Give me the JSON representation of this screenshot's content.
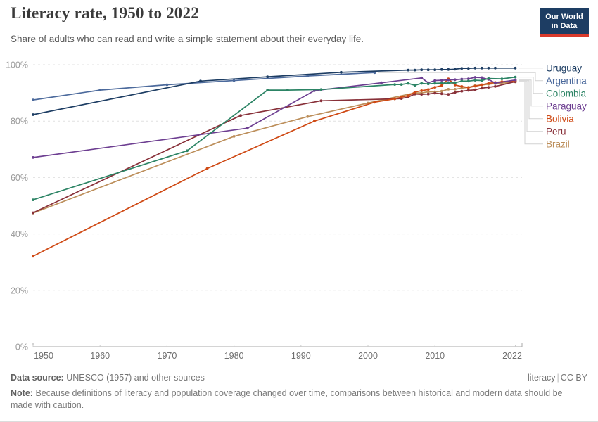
{
  "header": {
    "title": "Literacy rate, 1950 to 2022",
    "subtitle": "Share of adults who can read and write a simple statement about their everyday life.",
    "logo": {
      "line1": "Our World",
      "line2": "in Data"
    }
  },
  "chart_data": {
    "type": "line",
    "title": "Literacy rate, 1950 to 2022",
    "xlabel": "",
    "ylabel": "",
    "xlim": [
      1950,
      2023
    ],
    "ylim": [
      0,
      100
    ],
    "x_ticks": [
      1950,
      1960,
      1970,
      1980,
      1990,
      2000,
      2010,
      2022
    ],
    "y_ticks": [
      0,
      20,
      40,
      60,
      80,
      100
    ],
    "y_tick_suffix": "%",
    "grid": "horizontal-dashed",
    "legend_position": "right",
    "series": [
      {
        "name": "Uruguay",
        "color": "#1d3d63",
        "points": [
          [
            1950,
            82.3
          ],
          [
            1975,
            94.2
          ],
          [
            1985,
            95.7
          ],
          [
            1996,
            97.3
          ],
          [
            2006,
            98.1
          ],
          [
            2007,
            98.1
          ],
          [
            2008,
            98.2
          ],
          [
            2009,
            98.2
          ],
          [
            2010,
            98.2
          ],
          [
            2011,
            98.3
          ],
          [
            2012,
            98.3
          ],
          [
            2013,
            98.4
          ],
          [
            2014,
            98.7
          ],
          [
            2015,
            98.7
          ],
          [
            2016,
            98.8
          ],
          [
            2017,
            98.8
          ],
          [
            2018,
            98.8
          ],
          [
            2019,
            98.8
          ],
          [
            2022,
            98.8
          ]
        ]
      },
      {
        "name": "Argentina",
        "color": "#4c6a9c",
        "points": [
          [
            1950,
            87.5
          ],
          [
            1960,
            91.0
          ],
          [
            1970,
            92.9
          ],
          [
            1980,
            94.4
          ],
          [
            1991,
            96.0
          ],
          [
            2001,
            97.2
          ]
        ]
      },
      {
        "name": "Colombia",
        "color": "#2c8465",
        "points": [
          [
            1950,
            52.1
          ],
          [
            1973,
            69.5
          ],
          [
            1985,
            91.0
          ],
          [
            1988,
            91.0
          ],
          [
            1993,
            91.2
          ],
          [
            2004,
            93.0
          ],
          [
            2005,
            93.0
          ],
          [
            2006,
            93.4
          ],
          [
            2007,
            92.7
          ],
          [
            2008,
            93.4
          ],
          [
            2009,
            93.2
          ],
          [
            2010,
            93.4
          ],
          [
            2011,
            93.5
          ],
          [
            2012,
            93.5
          ],
          [
            2013,
            93.6
          ],
          [
            2014,
            94.2
          ],
          [
            2015,
            94.2
          ],
          [
            2016,
            94.5
          ],
          [
            2017,
            94.4
          ],
          [
            2018,
            95.1
          ],
          [
            2020,
            95.0
          ],
          [
            2022,
            95.6
          ]
        ]
      },
      {
        "name": "Paraguay",
        "color": "#6d3e91",
        "points": [
          [
            1950,
            67.1
          ],
          [
            1982,
            77.5
          ],
          [
            1992,
            90.8
          ],
          [
            2002,
            93.6
          ],
          [
            2008,
            95.3
          ],
          [
            2009,
            93.6
          ],
          [
            2010,
            94.4
          ],
          [
            2011,
            94.5
          ],
          [
            2012,
            94.6
          ],
          [
            2013,
            94.7
          ],
          [
            2014,
            94.9
          ],
          [
            2015,
            95.0
          ],
          [
            2016,
            95.5
          ],
          [
            2017,
            95.4
          ],
          [
            2018,
            94.8
          ],
          [
            2019,
            93.5
          ],
          [
            2022,
            94.6
          ]
        ]
      },
      {
        "name": "Bolivia",
        "color": "#cf4a15",
        "points": [
          [
            1950,
            32.1
          ],
          [
            1976,
            63.2
          ],
          [
            1992,
            80.0
          ],
          [
            2001,
            86.7
          ],
          [
            2004,
            87.9
          ],
          [
            2005,
            88.5
          ],
          [
            2006,
            89.0
          ],
          [
            2007,
            90.3
          ],
          [
            2008,
            90.8
          ],
          [
            2009,
            91.2
          ],
          [
            2010,
            92.0
          ],
          [
            2011,
            92.6
          ],
          [
            2012,
            95.0
          ],
          [
            2013,
            92.8
          ],
          [
            2014,
            92.3
          ],
          [
            2015,
            91.9
          ],
          [
            2016,
            92.4
          ],
          [
            2017,
            92.9
          ],
          [
            2018,
            93.4
          ],
          [
            2019,
            93.7
          ],
          [
            2020,
            94.0
          ],
          [
            2022,
            94.3
          ]
        ]
      },
      {
        "name": "Peru",
        "color": "#883039",
        "points": [
          [
            1950,
            47.5
          ],
          [
            1981,
            82.0
          ],
          [
            1993,
            87.2
          ],
          [
            2004,
            87.9
          ],
          [
            2005,
            88.0
          ],
          [
            2006,
            88.5
          ],
          [
            2007,
            89.6
          ],
          [
            2008,
            89.5
          ],
          [
            2009,
            89.6
          ],
          [
            2010,
            89.9
          ],
          [
            2011,
            89.7
          ],
          [
            2012,
            89.5
          ],
          [
            2013,
            90.2
          ],
          [
            2014,
            90.6
          ],
          [
            2015,
            90.9
          ],
          [
            2016,
            91.1
          ],
          [
            2017,
            91.7
          ],
          [
            2018,
            92.0
          ],
          [
            2019,
            92.3
          ],
          [
            2022,
            94.0
          ]
        ]
      },
      {
        "name": "Brazil",
        "color": "#bc8e5a",
        "points": [
          [
            1950,
            47.4
          ],
          [
            1980,
            74.6
          ],
          [
            1991,
            81.6
          ],
          [
            2000,
            86.4
          ],
          [
            2007,
            90.0
          ],
          [
            2008,
            90.0
          ],
          [
            2009,
            90.4
          ],
          [
            2010,
            90.4
          ],
          [
            2011,
            90.6
          ],
          [
            2012,
            91.3
          ],
          [
            2013,
            91.3
          ],
          [
            2014,
            91.7
          ],
          [
            2015,
            92.0
          ],
          [
            2016,
            92.6
          ],
          [
            2017,
            92.8
          ],
          [
            2018,
            93.1
          ],
          [
            2019,
            93.3
          ],
          [
            2022,
            93.9
          ]
        ]
      }
    ]
  },
  "footer": {
    "data_source_label": "Data source:",
    "data_source_value": "UNESCO (1957) and other sources",
    "link_label": "literacy",
    "license": "CC BY",
    "note_label": "Note:",
    "note_text": "Because definitions of literacy and population coverage changed over time, comparisons between historical and modern data should be made with caution."
  }
}
